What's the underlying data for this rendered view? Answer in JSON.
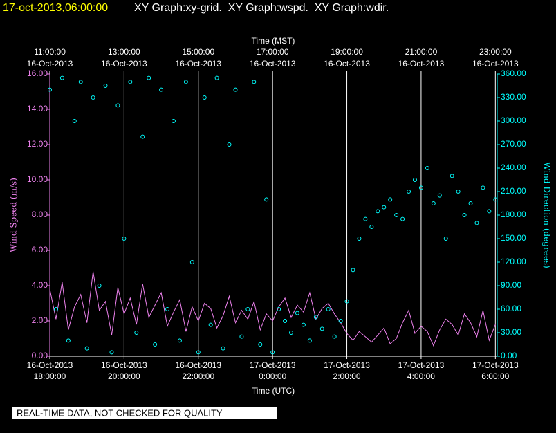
{
  "chart_data": {
    "type": "line",
    "title_time": "17-oct-2013,06:00:00",
    "title": "XY Graph:xy-grid.  XY Graph:wspd.  XY Graph:wdir.",
    "x_label_top": "Time (MST)",
    "x_label": "Time (UTC)",
    "y_label": "Wind Speed (m/s)",
    "y2_label": "Wind Direction (degrees)",
    "note": "REAL-TIME DATA, NOT CHECKED FOR QUALITY",
    "grid": true,
    "x": [
      "2013-10-16T18:00",
      "2013-10-16T18:10",
      "2013-10-16T18:20",
      "2013-10-16T18:30",
      "2013-10-16T18:40",
      "2013-10-16T18:50",
      "2013-10-16T19:00",
      "2013-10-16T19:10",
      "2013-10-16T19:20",
      "2013-10-16T19:30",
      "2013-10-16T19:40",
      "2013-10-16T19:50",
      "2013-10-16T20:00",
      "2013-10-16T20:10",
      "2013-10-16T20:20",
      "2013-10-16T20:30",
      "2013-10-16T20:40",
      "2013-10-16T20:50",
      "2013-10-16T21:00",
      "2013-10-16T21:10",
      "2013-10-16T21:20",
      "2013-10-16T21:30",
      "2013-10-16T21:40",
      "2013-10-16T21:50",
      "2013-10-16T22:00",
      "2013-10-16T22:10",
      "2013-10-16T22:20",
      "2013-10-16T22:30",
      "2013-10-16T22:40",
      "2013-10-16T22:50",
      "2013-10-16T23:00",
      "2013-10-16T23:10",
      "2013-10-16T23:20",
      "2013-10-16T23:30",
      "2013-10-16T23:40",
      "2013-10-16T23:50",
      "2013-10-17T00:00",
      "2013-10-17T00:10",
      "2013-10-17T00:20",
      "2013-10-17T00:30",
      "2013-10-17T00:40",
      "2013-10-17T00:50",
      "2013-10-17T01:00",
      "2013-10-17T01:10",
      "2013-10-17T01:20",
      "2013-10-17T01:30",
      "2013-10-17T01:40",
      "2013-10-17T01:50",
      "2013-10-17T02:00",
      "2013-10-17T02:10",
      "2013-10-17T02:20",
      "2013-10-17T02:30",
      "2013-10-17T02:40",
      "2013-10-17T02:50",
      "2013-10-17T03:00",
      "2013-10-17T03:10",
      "2013-10-17T03:20",
      "2013-10-17T03:30",
      "2013-10-17T03:40",
      "2013-10-17T03:50",
      "2013-10-17T04:00",
      "2013-10-17T04:10",
      "2013-10-17T04:20",
      "2013-10-17T04:30",
      "2013-10-17T04:40",
      "2013-10-17T04:50",
      "2013-10-17T05:00",
      "2013-10-17T05:10",
      "2013-10-17T05:20",
      "2013-10-17T05:30",
      "2013-10-17T05:40",
      "2013-10-17T05:50",
      "2013-10-17T06:00"
    ],
    "xlim": [
      "2013-10-16T18:00",
      "2013-10-17T06:03"
    ],
    "xticks": [
      {
        "value": "2013-10-16T18:00",
        "label": [
          "16-Oct-2013",
          "18:00:00"
        ]
      },
      {
        "value": "2013-10-16T20:00",
        "label": [
          "16-Oct-2013",
          "20:00:00"
        ]
      },
      {
        "value": "2013-10-16T22:00",
        "label": [
          "16-Oct-2013",
          "22:00:00"
        ]
      },
      {
        "value": "2013-10-17T00:00",
        "label": [
          "17-Oct-2013",
          "0:00:00"
        ]
      },
      {
        "value": "2013-10-17T02:00",
        "label": [
          "17-Oct-2013",
          "2:00:00"
        ]
      },
      {
        "value": "2013-10-17T04:00",
        "label": [
          "17-Oct-2013",
          "4:00:00"
        ]
      },
      {
        "value": "2013-10-17T06:00",
        "label": [
          "17-Oct-2013",
          "6:00:00"
        ]
      }
    ],
    "x2ticks": [
      {
        "value": "2013-10-16T18:00",
        "label": [
          "11:00:00",
          "16-Oct-2013"
        ]
      },
      {
        "value": "2013-10-16T20:00",
        "label": [
          "13:00:00",
          "16-Oct-2013"
        ]
      },
      {
        "value": "2013-10-16T22:00",
        "label": [
          "15:00:00",
          "16-Oct-2013"
        ]
      },
      {
        "value": "2013-10-17T00:00",
        "label": [
          "17:00:00",
          "16-Oct-2013"
        ]
      },
      {
        "value": "2013-10-17T02:00",
        "label": [
          "19:00:00",
          "16-Oct-2013"
        ]
      },
      {
        "value": "2013-10-17T04:00",
        "label": [
          "21:00:00",
          "16-Oct-2013"
        ]
      },
      {
        "value": "2013-10-17T06:00",
        "label": [
          "23:00:00",
          "16-Oct-2013"
        ]
      }
    ],
    "ylim": [
      0,
      16
    ],
    "yticks": [
      {
        "value": 0,
        "label": "0.00"
      },
      {
        "value": 2,
        "label": "2.00"
      },
      {
        "value": 4,
        "label": "4.00"
      },
      {
        "value": 6,
        "label": "6.00"
      },
      {
        "value": 8,
        "label": "8.00"
      },
      {
        "value": 10,
        "label": "10.00"
      },
      {
        "value": 12,
        "label": "12.00"
      },
      {
        "value": 14,
        "label": "14.00"
      },
      {
        "value": 16,
        "label": "16.00"
      }
    ],
    "y2lim": [
      0,
      360
    ],
    "y2ticks": [
      {
        "value": 0,
        "label": "0.00"
      },
      {
        "value": 30,
        "label": "30.00"
      },
      {
        "value": 60,
        "label": "60.00"
      },
      {
        "value": 90,
        "label": "90.00"
      },
      {
        "value": 120,
        "label": "120.00"
      },
      {
        "value": 150,
        "label": "150.00"
      },
      {
        "value": 180,
        "label": "180.00"
      },
      {
        "value": 210,
        "label": "210.00"
      },
      {
        "value": 240,
        "label": "240.00"
      },
      {
        "value": 270,
        "label": "270.00"
      },
      {
        "value": 300,
        "label": "300.00"
      },
      {
        "value": 330,
        "label": "330.00"
      },
      {
        "value": 360,
        "label": "360.00"
      }
    ],
    "y_color": "#ee82ee",
    "y2_color": "#00ffff",
    "series": [
      {
        "name": "wspd",
        "type": "line",
        "color": "#ee82ee",
        "values": [
          3.8,
          2.1,
          4.2,
          1.5,
          2.8,
          3.5,
          1.9,
          4.8,
          2.6,
          3.1,
          1.2,
          3.9,
          2.4,
          3.3,
          1.8,
          4.1,
          2.2,
          2.9,
          3.6,
          1.7,
          2.5,
          3.2,
          1.4,
          2.8,
          2.0,
          3.0,
          2.7,
          1.6,
          2.3,
          3.4,
          1.9,
          2.6,
          2.1,
          3.1,
          1.5,
          2.4,
          2.0,
          2.8,
          3.3,
          2.2,
          2.9,
          2.5,
          3.6,
          2.1,
          2.7,
          3.0,
          2.4,
          1.9,
          1.3,
          0.9,
          1.4,
          1.1,
          0.8,
          1.2,
          1.6,
          0.7,
          1.0,
          1.9,
          2.6,
          1.3,
          1.7,
          1.4,
          0.6,
          1.5,
          2.1,
          1.8,
          1.2,
          2.4,
          1.9,
          1.1,
          2.6,
          0.9,
          1.8
        ]
      },
      {
        "name": "wdir",
        "type": "scatter",
        "axis": "y2",
        "color": "#00ffff",
        "values": [
          340,
          60,
          355,
          20,
          300,
          350,
          10,
          330,
          90,
          345,
          5,
          320,
          150,
          350,
          30,
          280,
          355,
          15,
          340,
          60,
          300,
          20,
          350,
          120,
          5,
          330,
          40,
          355,
          10,
          270,
          340,
          25,
          60,
          350,
          15,
          200,
          5,
          60,
          45,
          30,
          55,
          40,
          20,
          50,
          35,
          60,
          25,
          45,
          70,
          110,
          150,
          175,
          165,
          185,
          190,
          200,
          180,
          175,
          210,
          225,
          215,
          240,
          195,
          205,
          150,
          230,
          210,
          180,
          195,
          170,
          215,
          185,
          200
        ]
      }
    ]
  }
}
